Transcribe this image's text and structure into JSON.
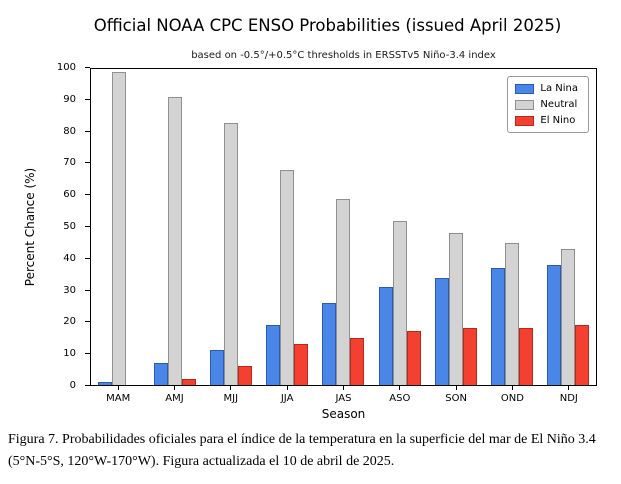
{
  "title": "Official NOAA CPC ENSO Probabilities (issued April 2025)",
  "subtitle": "based on -0.5°/+0.5°C thresholds in ERSSTv5 Niño-3.4 index",
  "caption": "Figura 7. Probabilidades oficiales para el índice de la temperatura en la superficie del mar de El Niño 3.4  (5°N-5°S, 120°W-170°W). Figura actualizada el 10 de abril de 2025.",
  "chart_data": {
    "type": "bar",
    "categories": [
      "MAM",
      "AMJ",
      "MJJ",
      "JJA",
      "JAS",
      "ASO",
      "SON",
      "OND",
      "NDJ"
    ],
    "series": [
      {
        "name": "La Nina",
        "color": "#4a86e8",
        "edge": "#2a5db0",
        "values": [
          1,
          7,
          11,
          19,
          26,
          31,
          34,
          37,
          38
        ]
      },
      {
        "name": "Neutral",
        "color": "#d3d3d3",
        "edge": "#909090",
        "values": [
          99,
          91,
          83,
          68,
          59,
          52,
          48,
          45,
          43
        ]
      },
      {
        "name": "El Nino",
        "color": "#f44031",
        "edge": "#b8291d",
        "values": [
          0,
          2,
          6,
          13,
          15,
          17,
          18,
          18,
          19
        ]
      }
    ],
    "xlabel": "Season",
    "ylabel": "Percent Chance (%)",
    "ylim": [
      0,
      100
    ],
    "ytick_step": 10,
    "legend_position": "upper right",
    "grid": false
  }
}
